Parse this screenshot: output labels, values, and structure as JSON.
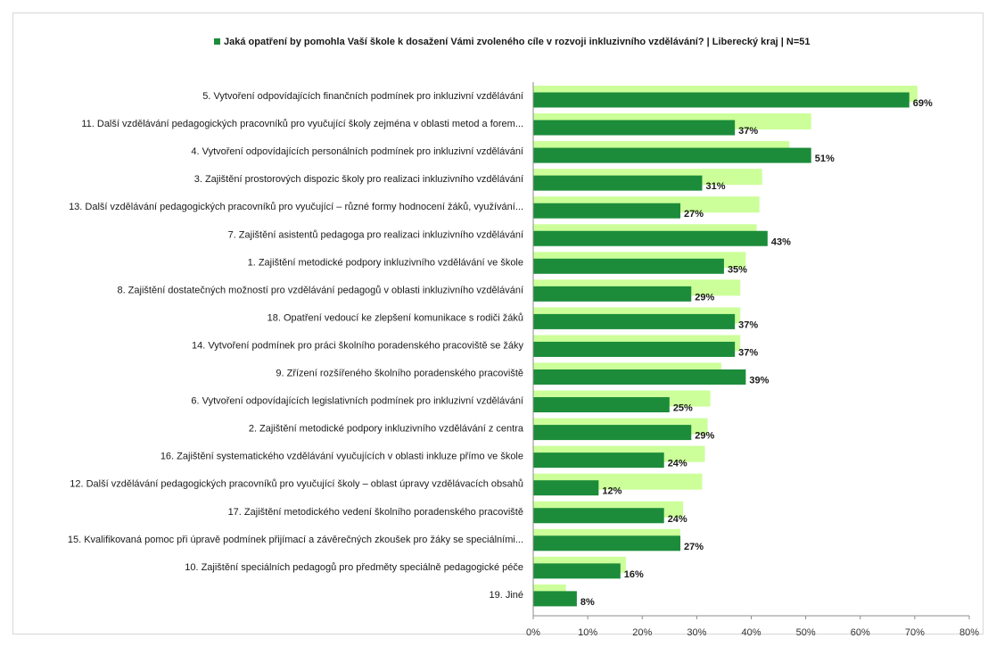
{
  "chart_data": {
    "type": "bar",
    "orientation": "horizontal",
    "title": "Jaká opatření by pomohla Vaší škole k dosažení Vámi zvoleného cíle v rozvoji inkluzivního vzdělávání? | Liberecký kraj | N=51",
    "xlim": [
      0,
      80
    ],
    "xticks": [
      0,
      10,
      20,
      30,
      40,
      50,
      60,
      70,
      80
    ],
    "tick_format": "{v}%",
    "colors": {
      "main": "#1c8c3a",
      "background_series": "#ccff99",
      "title_marker": "#1c8c3a"
    },
    "categories": [
      "5. Vytvoření odpovídajících finančních podmínek pro inkluzivní vzdělávání",
      "11. Další vzdělávání pedagogických pracovníků pro vyučující školy zejména v oblasti metod a forem...",
      "4. Vytvoření odpovídajících personálních podmínek pro inkluzivní vzdělávání",
      "3. Zajištění prostorových dispozic školy pro realizaci inkluzivního vzdělávání",
      "13. Další vzdělávání pedagogických pracovníků pro vyučující – různé formy hodnocení žáků, využívání...",
      "7. Zajištění asistentů pedagoga pro realizaci inkluzivního vzdělávání",
      "1. Zajištění metodické podpory inkluzivního vzdělávání ve škole",
      "8. Zajištění dostatečných možností pro vzdělávání pedagogů v oblasti inkluzivního vzdělávání",
      "18. Opatření vedoucí ke zlepšení komunikace s rodiči žáků",
      "14. Vytvoření podmínek pro práci školního poradenského pracoviště se žáky",
      "9. Zřízení rozšířeného školního poradenského pracoviště",
      "6. Vytvoření odpovídajících legislativních podmínek pro inkluzivní vzdělávání",
      "2. Zajištění metodické podpory inkluzivního vzdělávání z centra",
      "16. Zajištění systematického vzdělávání vyučujících v oblasti inkluze přímo ve škole",
      "12. Další vzdělávání pedagogických pracovníků pro vyučující školy – oblast úpravy vzdělávacích obsahů",
      "17. Zajištění metodického vedení školního poradenského pracoviště",
      "15. Kvalifikovaná pomoc při úpravě podmínek přijímací a závěrečných zkoušek pro žáky se speciálními...",
      "10. Zajištění speciálních pedagogů pro předměty speciálně pedagogické péče",
      "19. Jiné"
    ],
    "series": [
      {
        "role": "background",
        "values": [
          70.5,
          51,
          47,
          42,
          41.5,
          41,
          39,
          38,
          38,
          38,
          34.5,
          32.5,
          32,
          31.5,
          31,
          27.5,
          27,
          17,
          6
        ]
      },
      {
        "role": "main",
        "values": [
          69,
          37,
          51,
          31,
          27,
          43,
          35,
          29,
          37,
          37,
          39,
          25,
          29,
          24,
          12,
          24,
          27,
          16,
          8
        ],
        "labels": [
          "69%",
          "37%",
          "51%",
          "31%",
          "27%",
          "43%",
          "35%",
          "29%",
          "37%",
          "37%",
          "39%",
          "25%",
          "29%",
          "24%",
          "12%",
          "24%",
          "27%",
          "16%",
          "8%"
        ]
      }
    ]
  }
}
